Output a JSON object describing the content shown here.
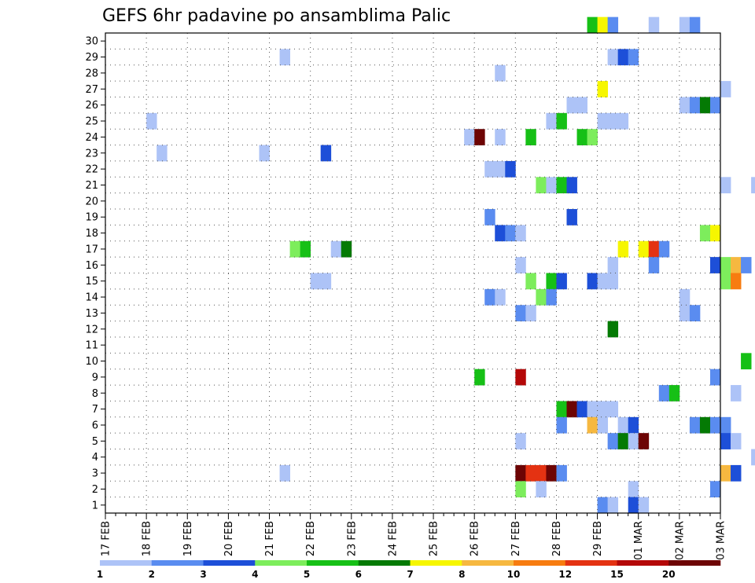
{
  "chart_data": {
    "type": "heatmap",
    "title": "GEFS 6hr padavine po ansamblima Palic",
    "xlabel": "",
    "ylabel": "",
    "x_tick_labels": [
      "17 FEB",
      "18 FEB",
      "19 FEB",
      "20 FEB",
      "21 FEB",
      "22 FEB",
      "23 FEB",
      "24 FEB",
      "25 FEB",
      "26 FEB",
      "27 FEB",
      "28 FEB",
      "29 FEB",
      "01 MAR",
      "02 MAR",
      "03 MAR"
    ],
    "y_tick_labels": [
      "1",
      "2",
      "3",
      "4",
      "5",
      "6",
      "7",
      "8",
      "9",
      "10",
      "11",
      "12",
      "13",
      "14",
      "15",
      "16",
      "17",
      "18",
      "19",
      "20",
      "21",
      "22",
      "23",
      "24",
      "25",
      "26",
      "27",
      "28",
      "29",
      "30"
    ],
    "xlim_days": [
      0,
      15
    ],
    "ylim": [
      0,
      30
    ],
    "steps_per_day": 4,
    "grid": true,
    "legend": {
      "placement": "bottom",
      "labels": [
        "1",
        "2",
        "3",
        "4",
        "5",
        "6",
        "7",
        "8",
        "10",
        "12",
        "15",
        "20"
      ],
      "colors": [
        "#adc3f7",
        "#5a8cf0",
        "#1d4fd8",
        "#7ded5c",
        "#16c016",
        "#047a04",
        "#f6f600",
        "#f6b840",
        "#f77c10",
        "#e43212",
        "#b40808",
        "#6d0404"
      ]
    },
    "cells": [
      [
        30,
        [
          [
            47,
            5
          ],
          [
            48,
            7
          ],
          [
            49,
            2
          ],
          [
            53,
            1
          ],
          [
            56,
            1
          ],
          [
            57,
            2
          ]
        ]
      ],
      [
        29,
        []
      ],
      [
        28,
        [
          [
            17,
            1
          ],
          [
            49,
            1
          ],
          [
            50,
            3
          ],
          [
            51,
            2
          ],
          [
            75,
            1
          ]
        ]
      ],
      [
        27,
        [
          [
            38,
            1
          ],
          [
            68,
            6
          ]
        ]
      ],
      [
        26,
        [
          [
            48,
            7
          ],
          [
            60,
            1
          ]
        ]
      ],
      [
        25,
        [
          [
            45,
            1
          ],
          [
            46,
            1
          ],
          [
            56,
            1
          ],
          [
            57,
            2
          ],
          [
            58,
            6
          ],
          [
            59,
            2
          ]
        ]
      ],
      [
        24,
        [
          [
            4,
            1
          ],
          [
            43,
            1
          ],
          [
            44,
            5
          ],
          [
            48,
            1
          ],
          [
            49,
            1
          ],
          [
            50,
            1
          ],
          [
            75,
            2
          ],
          [
            76,
            1
          ]
        ]
      ],
      [
        23,
        [
          [
            35,
            1
          ],
          [
            36,
            12
          ],
          [
            38,
            1
          ],
          [
            41,
            5
          ],
          [
            46,
            5
          ],
          [
            47,
            4
          ],
          [
            69,
            10
          ],
          [
            70,
            11
          ],
          [
            71,
            12
          ],
          [
            72,
            11
          ],
          [
            73,
            11
          ],
          [
            74,
            3
          ]
        ]
      ],
      [
        22,
        [
          [
            5,
            1
          ],
          [
            15,
            1
          ],
          [
            21,
            3
          ]
        ]
      ],
      [
        21,
        [
          [
            37,
            1
          ],
          [
            38,
            1
          ],
          [
            39,
            3
          ]
        ]
      ],
      [
        20,
        [
          [
            42,
            4
          ],
          [
            43,
            1
          ],
          [
            44,
            5
          ],
          [
            45,
            3
          ],
          [
            60,
            1
          ],
          [
            63,
            1
          ],
          [
            72,
            1
          ],
          [
            75,
            6
          ]
        ]
      ],
      [
        19,
        [
          [
            72,
            2
          ]
        ]
      ],
      [
        18,
        [
          [
            37,
            2
          ],
          [
            45,
            3
          ],
          [
            75,
            1
          ]
        ]
      ],
      [
        17,
        [
          [
            38,
            3
          ],
          [
            39,
            2
          ],
          [
            40,
            1
          ],
          [
            58,
            4
          ],
          [
            59,
            7
          ]
        ]
      ],
      [
        16,
        [
          [
            18,
            4
          ],
          [
            19,
            5
          ],
          [
            22,
            1
          ],
          [
            23,
            6
          ],
          [
            50,
            7
          ],
          [
            52,
            7
          ],
          [
            53,
            10
          ],
          [
            54,
            2
          ],
          [
            71,
            1
          ]
        ]
      ],
      [
        15,
        [
          [
            40,
            1
          ],
          [
            49,
            1
          ],
          [
            53,
            2
          ],
          [
            59,
            3
          ],
          [
            60,
            4
          ],
          [
            61,
            8
          ],
          [
            62,
            2
          ],
          [
            69,
            1
          ]
        ]
      ],
      [
        14,
        [
          [
            20,
            1
          ],
          [
            21,
            1
          ],
          [
            41,
            4
          ],
          [
            43,
            5
          ],
          [
            44,
            3
          ],
          [
            47,
            3
          ],
          [
            48,
            1
          ],
          [
            49,
            1
          ],
          [
            60,
            4
          ],
          [
            61,
            9
          ],
          [
            69,
            6
          ],
          [
            70,
            5
          ],
          [
            71,
            2
          ],
          [
            72,
            3
          ],
          [
            73,
            6
          ],
          [
            74,
            1
          ]
        ]
      ],
      [
        13,
        [
          [
            37,
            2
          ],
          [
            38,
            1
          ],
          [
            42,
            4
          ],
          [
            43,
            2
          ],
          [
            56,
            1
          ],
          [
            67,
            1
          ],
          [
            68,
            3
          ],
          [
            69,
            3
          ],
          [
            70,
            2
          ]
        ]
      ],
      [
        12,
        [
          [
            40,
            2
          ],
          [
            41,
            1
          ],
          [
            56,
            1
          ],
          [
            57,
            2
          ]
        ]
      ],
      [
        11,
        [
          [
            49,
            6
          ]
        ]
      ],
      [
        10,
        []
      ],
      [
        9,
        [
          [
            62,
            5
          ]
        ]
      ],
      [
        8,
        [
          [
            36,
            5
          ],
          [
            40,
            11
          ],
          [
            59,
            2
          ]
        ]
      ],
      [
        7,
        [
          [
            54,
            2
          ],
          [
            55,
            5
          ],
          [
            61,
            1
          ],
          [
            68,
            1
          ]
        ]
      ],
      [
        6,
        [
          [
            44,
            5
          ],
          [
            45,
            12
          ],
          [
            46,
            3
          ],
          [
            47,
            1
          ],
          [
            48,
            1
          ],
          [
            49,
            1
          ],
          [
            71,
            1
          ]
        ]
      ],
      [
        5,
        [
          [
            44,
            2
          ],
          [
            47,
            8
          ],
          [
            48,
            1
          ],
          [
            50,
            1
          ],
          [
            51,
            3
          ],
          [
            57,
            2
          ],
          [
            58,
            6
          ],
          [
            59,
            2
          ],
          [
            60,
            2
          ]
        ]
      ],
      [
        4,
        [
          [
            40,
            1
          ],
          [
            49,
            2
          ],
          [
            50,
            6
          ],
          [
            51,
            1
          ],
          [
            52,
            12
          ],
          [
            60,
            3
          ],
          [
            61,
            1
          ],
          [
            64,
            1
          ],
          [
            65,
            1
          ]
        ]
      ],
      [
        3,
        [
          [
            63,
            1
          ],
          [
            64,
            2
          ],
          [
            65,
            1
          ],
          [
            76,
            2
          ]
        ]
      ],
      [
        2,
        [
          [
            17,
            1
          ],
          [
            40,
            12
          ],
          [
            41,
            10
          ],
          [
            42,
            10
          ],
          [
            43,
            12
          ],
          [
            44,
            2
          ],
          [
            60,
            8
          ],
          [
            61,
            3
          ],
          [
            64,
            3
          ],
          [
            65,
            5
          ],
          [
            66,
            2
          ],
          [
            67,
            11
          ],
          [
            68,
            2
          ],
          [
            69,
            3
          ],
          [
            70,
            3
          ],
          [
            71,
            2
          ]
        ]
      ],
      [
        1,
        [
          [
            40,
            4
          ],
          [
            42,
            1
          ],
          [
            51,
            1
          ],
          [
            59,
            2
          ],
          [
            64,
            3
          ],
          [
            65,
            1
          ]
        ]
      ],
      [
        0,
        [
          [
            48,
            2
          ],
          [
            49,
            1
          ],
          [
            51,
            3
          ],
          [
            52,
            1
          ]
        ]
      ]
    ]
  }
}
